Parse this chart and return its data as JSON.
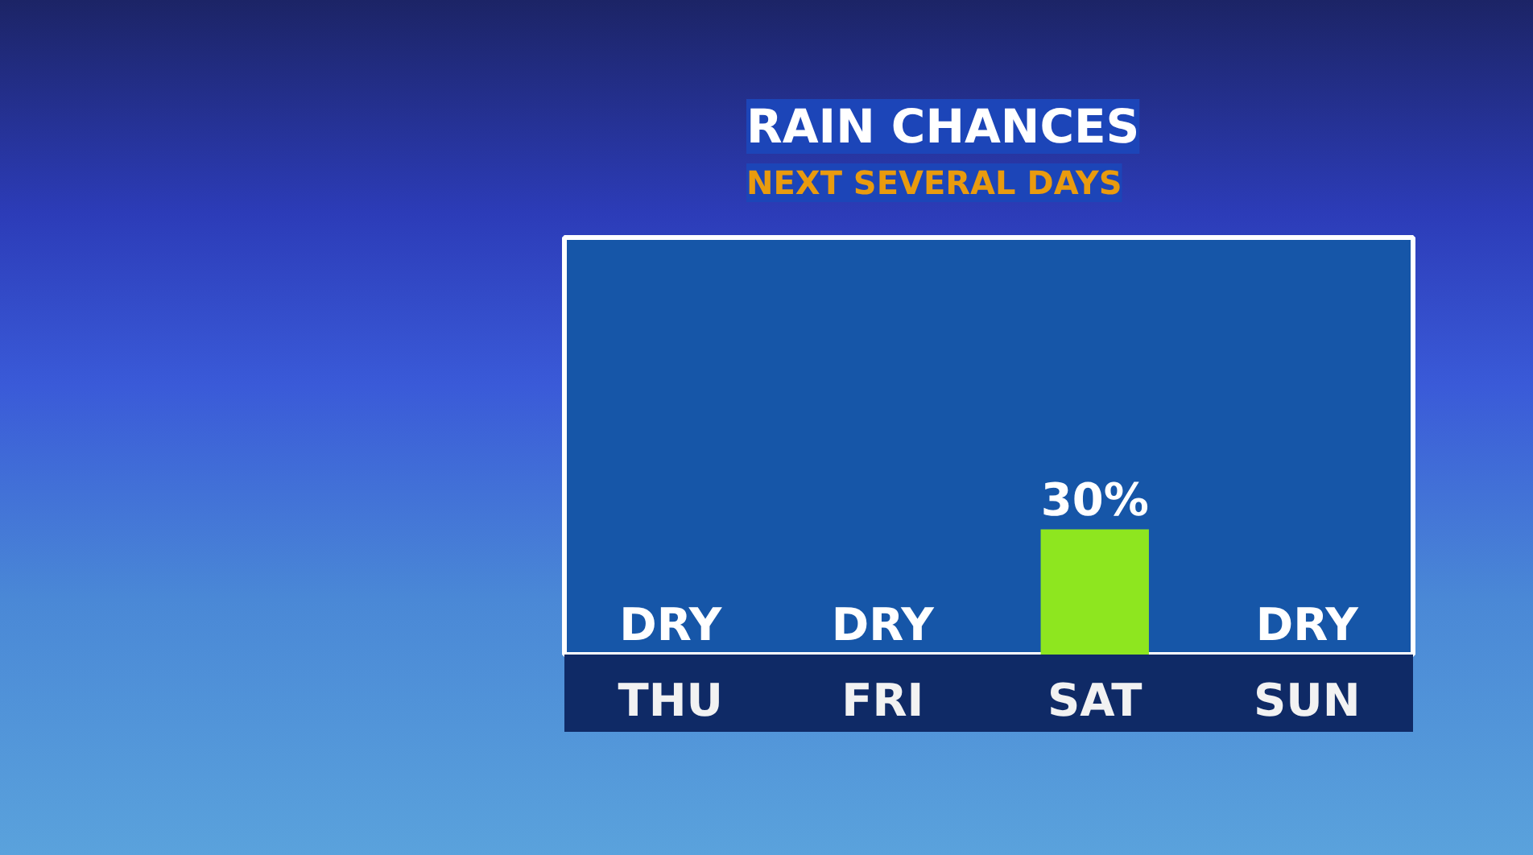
{
  "chart_data": {
    "type": "bar",
    "title": "RAIN CHANCES",
    "subtitle": "NEXT SEVERAL DAYS",
    "categories": [
      "THU",
      "FRI",
      "SAT",
      "SUN"
    ],
    "values": [
      0,
      0,
      30,
      0
    ],
    "value_labels": [
      "DRY",
      "DRY",
      "30%",
      "DRY"
    ],
    "color": "#8ee61f",
    "ylim": [
      0,
      100
    ],
    "tick_labels": "x"
  }
}
